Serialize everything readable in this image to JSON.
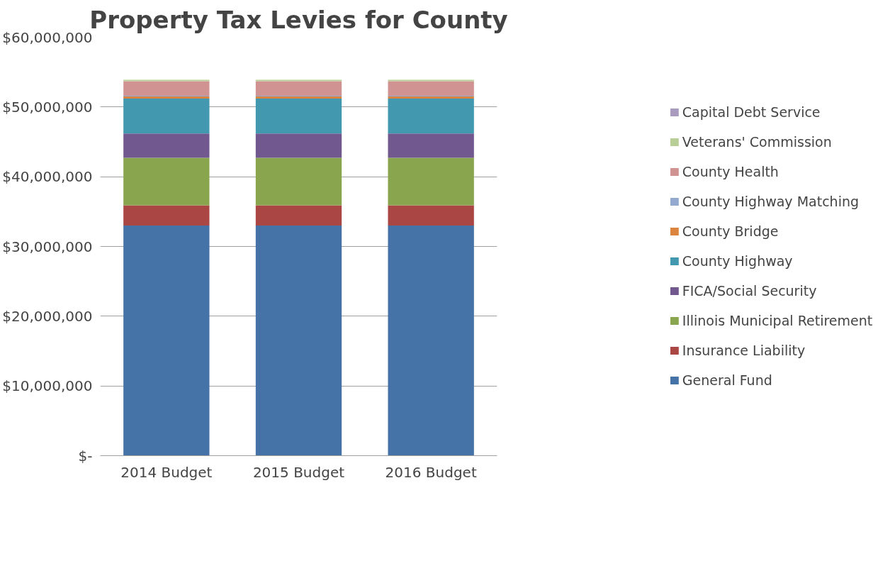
{
  "chart_data": {
    "type": "bar",
    "title": "Property Tax Levies for County",
    "stacked": true,
    "categories": [
      "2014 Budget",
      "2015 Budget",
      "2016 Budget"
    ],
    "series": [
      {
        "name": "General Fund",
        "color": "#4572a7",
        "values": [
          33000000,
          33000000,
          33000000
        ]
      },
      {
        "name": "Insurance Liability",
        "color": "#aa4643",
        "values": [
          2900000,
          2900000,
          2900000
        ]
      },
      {
        "name": "Illinois Municipal Retirement",
        "color": "#89a54e",
        "values": [
          6800000,
          6800000,
          6800000
        ]
      },
      {
        "name": "FICA/Social Security",
        "color": "#71588f",
        "values": [
          3500000,
          3500000,
          3500000
        ]
      },
      {
        "name": "County Highway",
        "color": "#4198af",
        "values": [
          5000000,
          5000000,
          5000000
        ]
      },
      {
        "name": "County Bridge",
        "color": "#db843d",
        "values": [
          300000,
          300000,
          300000
        ]
      },
      {
        "name": "County Highway Matching",
        "color": "#93a9cf",
        "values": [
          100000,
          100000,
          100000
        ]
      },
      {
        "name": "County Health",
        "color": "#d19392",
        "values": [
          2100000,
          2100000,
          2100000
        ]
      },
      {
        "name": "Veterans' Commission",
        "color": "#b9cd96",
        "values": [
          200000,
          200000,
          200000
        ]
      },
      {
        "name": "Capital Debt Service",
        "color": "#a99bbd",
        "values": [
          0,
          0,
          0
        ]
      }
    ],
    "ylim": [
      0,
      60000000
    ],
    "yticks": [
      {
        "value": 0,
        "label": "$-"
      },
      {
        "value": 10000000,
        "label": "$10,000,000"
      },
      {
        "value": 20000000,
        "label": "$20,000,000"
      },
      {
        "value": 30000000,
        "label": "$30,000,000"
      },
      {
        "value": 40000000,
        "label": "$40,000,000"
      },
      {
        "value": 50000000,
        "label": "$50,000,000"
      },
      {
        "value": 60000000,
        "label": "$60,000,000"
      }
    ],
    "grid": "y",
    "legend": "right"
  }
}
